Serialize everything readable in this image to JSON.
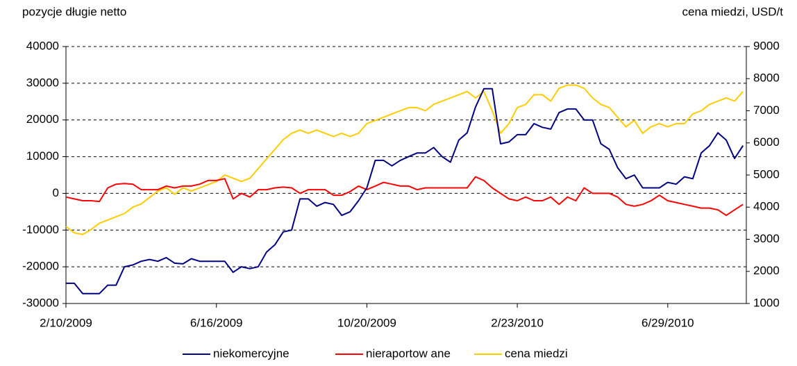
{
  "chart_data": {
    "type": "line",
    "ylabel": "pozycje długie netto",
    "y2label": "cena miedzi, USD/t",
    "categories": [
      "2/10/2009",
      null,
      null,
      null,
      null,
      null,
      null,
      null,
      null,
      null,
      null,
      null,
      null,
      null,
      null,
      null,
      null,
      null,
      "6/16/2009",
      null,
      null,
      null,
      null,
      null,
      null,
      null,
      null,
      null,
      null,
      null,
      null,
      null,
      null,
      null,
      null,
      null,
      "10/20/2009",
      null,
      null,
      null,
      null,
      null,
      null,
      null,
      null,
      null,
      null,
      null,
      null,
      null,
      null,
      null,
      null,
      null,
      "2/23/2010",
      null,
      null,
      null,
      null,
      null,
      null,
      null,
      null,
      null,
      null,
      null,
      null,
      null,
      null,
      null,
      null,
      null,
      "6/29/2010",
      null,
      null,
      null,
      null,
      null,
      null,
      null,
      null,
      null
    ],
    "ylim": [
      -30000,
      40000
    ],
    "yticks": [
      -30000,
      -20000,
      -10000,
      0,
      10000,
      20000,
      30000,
      40000
    ],
    "y2lim": [
      1000,
      9000
    ],
    "y2ticks": [
      1000,
      2000,
      3000,
      4000,
      5000,
      6000,
      7000,
      8000,
      9000
    ],
    "grid": true,
    "legend": "bottom",
    "series": [
      {
        "name": "niekomercyjne",
        "color": "#000080",
        "values": [
          -24500,
          -24500,
          -27300,
          -27300,
          -27300,
          -25000,
          -25000,
          -20000,
          -19500,
          -18500,
          -18000,
          -18500,
          -17500,
          -19000,
          -19200,
          -17800,
          -18500,
          -18500,
          -18500,
          -18500,
          -21500,
          -20000,
          -20500,
          -20000,
          -16000,
          -14000,
          -10500,
          -10000,
          -1500,
          -1500,
          -3500,
          -2500,
          -3000,
          -6000,
          -5000,
          -2000,
          1500,
          9000,
          9000,
          7500,
          9000,
          10000,
          11000,
          11000,
          12500,
          10000,
          8500,
          14500,
          16500,
          23500,
          28500,
          28500,
          13500,
          14000,
          16000,
          16000,
          19000,
          18000,
          17500,
          22000,
          23000,
          23000,
          20000,
          20000,
          13500,
          12000,
          7000,
          4000,
          5000,
          1500,
          1500,
          1500,
          3000,
          2500,
          4500,
          4000,
          11000,
          13000,
          16500,
          14500,
          9500,
          13000
        ]
      },
      {
        "name": "nieraportow ane",
        "color": "#ff0000",
        "values": [
          -1000,
          -1500,
          -2000,
          -2000,
          -2200,
          1500,
          2500,
          2700,
          2500,
          1000,
          1000,
          1000,
          2000,
          1500,
          2000,
          2000,
          2500,
          3500,
          3500,
          4000,
          -1500,
          0,
          -1000,
          1000,
          1000,
          1500,
          1700,
          1500,
          0,
          1000,
          1000,
          1000,
          -500,
          -500,
          500,
          2000,
          1000,
          2000,
          3000,
          2500,
          2000,
          2000,
          1000,
          1500,
          1500,
          1500,
          1500,
          1500,
          1500,
          4500,
          3500,
          1500,
          0,
          -1500,
          -2000,
          -1000,
          -2000,
          -2000,
          -1000,
          -3000,
          -1000,
          -2000,
          1500,
          0,
          0,
          0,
          -1000,
          -3000,
          -3500,
          -3000,
          -2000,
          -500,
          -2000,
          -2500,
          -3000,
          -3500,
          -4000,
          -4000,
          -4500,
          -6000,
          -4500,
          -3000
        ]
      },
      {
        "name": "cena miedzi",
        "color": "#ffcc00",
        "axis": "y2",
        "values": [
          3400,
          3200,
          3150,
          3300,
          3500,
          3600,
          3700,
          3800,
          4000,
          4100,
          4300,
          4500,
          4600,
          4400,
          4600,
          4500,
          4600,
          4700,
          4800,
          5000,
          4900,
          4800,
          4900,
          5200,
          5500,
          5800,
          6100,
          6300,
          6400,
          6300,
          6400,
          6300,
          6200,
          6300,
          6200,
          6300,
          6600,
          6700,
          6800,
          6900,
          7000,
          7100,
          7100,
          7000,
          7200,
          7300,
          7400,
          7500,
          7600,
          7400,
          7600,
          7000,
          6300,
          6600,
          7100,
          7200,
          7500,
          7500,
          7300,
          7700,
          7800,
          7800,
          7700,
          7400,
          7200,
          7100,
          6800,
          6500,
          6700,
          6300,
          6500,
          6600,
          6500,
          6600,
          6600,
          6900,
          7000,
          7200,
          7300,
          7400,
          7300,
          7600
        ]
      }
    ]
  }
}
